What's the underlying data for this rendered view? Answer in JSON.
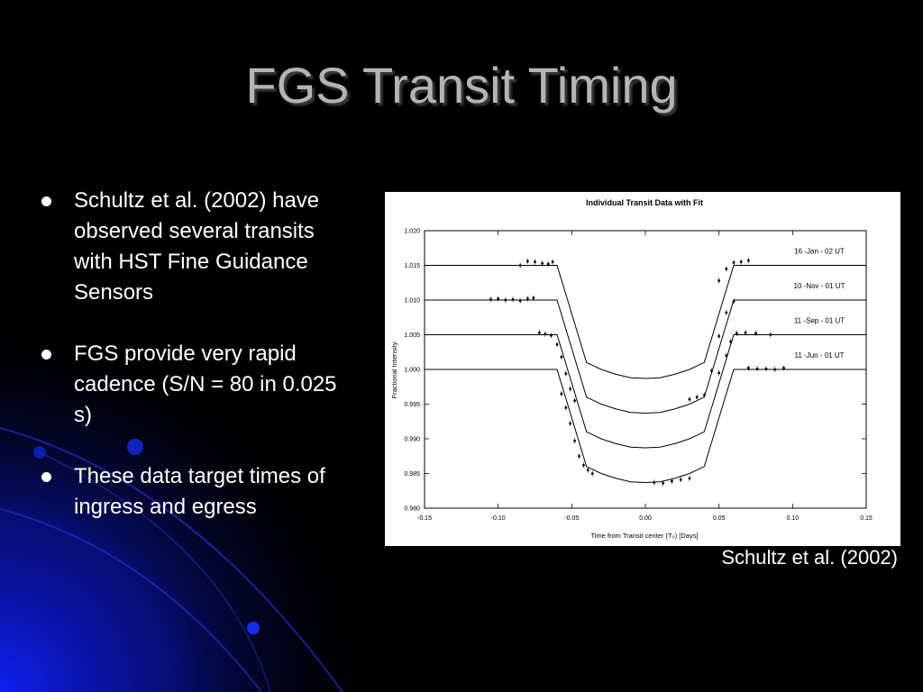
{
  "slide": {
    "title": "FGS Transit Timing",
    "bullets": [
      "Schultz et al. (2002) have observed several transits with HST Fine Guidance Sensors",
      "FGS provide very rapid cadence (S/N = 80 in 0.025 s)",
      "These data target times of ingress and egress"
    ],
    "caption": "Schultz et al. (2002)",
    "colors": {
      "background": "#000000",
      "title": "#b4b4b4",
      "text": "#ffffff",
      "accent": "#1a2cff"
    }
  },
  "chart_data": {
    "type": "line",
    "title": "Individual Transit Data with Fit",
    "xlabel": "Time from Transit center (T₀) [Days]",
    "ylabel": "Fractional Intensity",
    "xlim": [
      -0.15,
      0.15
    ],
    "ylim": [
      0.98,
      1.02
    ],
    "xticks": [
      "-0.15",
      "-0.10",
      "-0.05",
      "0.00",
      "0.05",
      "0.10",
      "0.15"
    ],
    "yticks": [
      "0.980",
      "0.985",
      "0.990",
      "0.995",
      "1.000",
      "1.005",
      "1.010",
      "1.015",
      "1.020"
    ],
    "grid": false,
    "x": [
      -0.15,
      -0.06,
      -0.058,
      -0.055,
      -0.052,
      -0.049,
      -0.046,
      -0.043,
      -0.04,
      -0.037,
      -0.034,
      -0.03,
      -0.02,
      -0.01,
      0.0,
      0.01,
      0.02,
      0.03,
      0.034,
      0.037,
      0.04,
      0.043,
      0.046,
      0.049,
      0.052,
      0.055,
      0.058,
      0.06,
      0.15
    ],
    "series": [
      {
        "name": "16 -Jan - 02 UT",
        "values": [
          1.015,
          1.015,
          1.0136,
          1.0115,
          1.0094,
          1.0073,
          1.0052,
          1.0031,
          1.001,
          1.0007,
          1.0004,
          1.0,
          0.9993,
          0.9988,
          0.9987,
          0.9988,
          0.9993,
          1.0,
          1.0004,
          1.0007,
          1.001,
          1.0031,
          1.0052,
          1.0073,
          1.0094,
          1.0115,
          1.0136,
          1.015,
          1.015
        ],
        "observations": [
          [
            -0.085,
            1.015
          ],
          [
            -0.08,
            1.0156
          ],
          [
            -0.075,
            1.0155
          ],
          [
            -0.07,
            1.0153
          ],
          [
            -0.066,
            1.0152
          ],
          [
            -0.063,
            1.0155
          ],
          [
            0.05,
            1.0128
          ],
          [
            0.055,
            1.0145
          ],
          [
            0.06,
            1.0154
          ],
          [
            0.065,
            1.0155
          ],
          [
            0.07,
            1.0157
          ]
        ]
      },
      {
        "name": "10 -Nov - 01 UT",
        "values": [
          1.01,
          1.01,
          1.0086,
          1.0065,
          1.0044,
          1.0023,
          1.0002,
          0.9981,
          0.996,
          0.9957,
          0.9954,
          0.995,
          0.9943,
          0.9938,
          0.9937,
          0.9938,
          0.9943,
          0.995,
          0.9954,
          0.9957,
          0.996,
          0.9981,
          1.0002,
          1.0023,
          1.0044,
          1.0065,
          1.0086,
          1.01,
          1.01
        ],
        "observations": [
          [
            -0.105,
            1.0101
          ],
          [
            -0.1,
            1.0102
          ],
          [
            -0.095,
            1.01
          ],
          [
            -0.09,
            1.0101
          ],
          [
            -0.085,
            1.0099
          ],
          [
            -0.08,
            1.0102
          ],
          [
            -0.076,
            1.0103
          ],
          [
            0.03,
            0.9957
          ],
          [
            0.035,
            0.996
          ],
          [
            0.04,
            0.9963
          ],
          [
            0.045,
            0.9998
          ],
          [
            0.05,
            1.0048
          ],
          [
            0.055,
            1.0082
          ],
          [
            0.06,
            1.0098
          ]
        ]
      },
      {
        "name": "11 -Sep - 01 UT",
        "values": [
          1.005,
          1.005,
          1.0036,
          1.0015,
          0.9994,
          0.9973,
          0.9952,
          0.9931,
          0.991,
          0.9907,
          0.9904,
          0.99,
          0.9893,
          0.9888,
          0.9887,
          0.9888,
          0.9893,
          0.99,
          0.9904,
          0.9907,
          0.991,
          0.9931,
          0.9952,
          0.9973,
          0.9994,
          1.0015,
          1.0036,
          1.005,
          1.005
        ],
        "observations": [
          [
            -0.072,
            1.0053
          ],
          [
            -0.068,
            1.0051
          ],
          [
            -0.064,
            1.0049
          ],
          [
            -0.06,
            1.0036
          ],
          [
            -0.057,
            1.0018
          ],
          [
            -0.054,
            0.9994
          ],
          [
            -0.051,
            0.9972
          ],
          [
            -0.048,
            0.9955
          ],
          [
            0.05,
            0.9995
          ],
          [
            0.055,
            1.002
          ],
          [
            0.058,
            1.004
          ],
          [
            0.062,
            1.0052
          ],
          [
            0.068,
            1.0053
          ],
          [
            0.075,
            1.0052
          ],
          [
            0.085,
            1.005
          ]
        ]
      },
      {
        "name": "11 -Jun - 01 UT",
        "values": [
          1.0,
          1.0,
          0.9986,
          0.9965,
          0.9944,
          0.9923,
          0.9902,
          0.9881,
          0.986,
          0.9857,
          0.9854,
          0.985,
          0.9843,
          0.9838,
          0.9837,
          0.9838,
          0.9843,
          0.985,
          0.9854,
          0.9857,
          0.986,
          0.9881,
          0.9902,
          0.9923,
          0.9944,
          0.9965,
          0.9986,
          1.0,
          1.0
        ],
        "observations": [
          [
            -0.057,
            0.9965
          ],
          [
            -0.054,
            0.9945
          ],
          [
            -0.051,
            0.9922
          ],
          [
            -0.048,
            0.9897
          ],
          [
            -0.045,
            0.9875
          ],
          [
            -0.042,
            0.9862
          ],
          [
            -0.039,
            0.9855
          ],
          [
            -0.036,
            0.985
          ],
          [
            0.006,
            0.9837
          ],
          [
            0.012,
            0.9836
          ],
          [
            0.018,
            0.9839
          ],
          [
            0.024,
            0.9841
          ],
          [
            0.03,
            0.9843
          ],
          [
            0.07,
            1.0002
          ],
          [
            0.076,
            1.0001
          ],
          [
            0.082,
            1.0001
          ],
          [
            0.088,
            1.0
          ],
          [
            0.094,
            1.0002
          ]
        ]
      }
    ]
  }
}
